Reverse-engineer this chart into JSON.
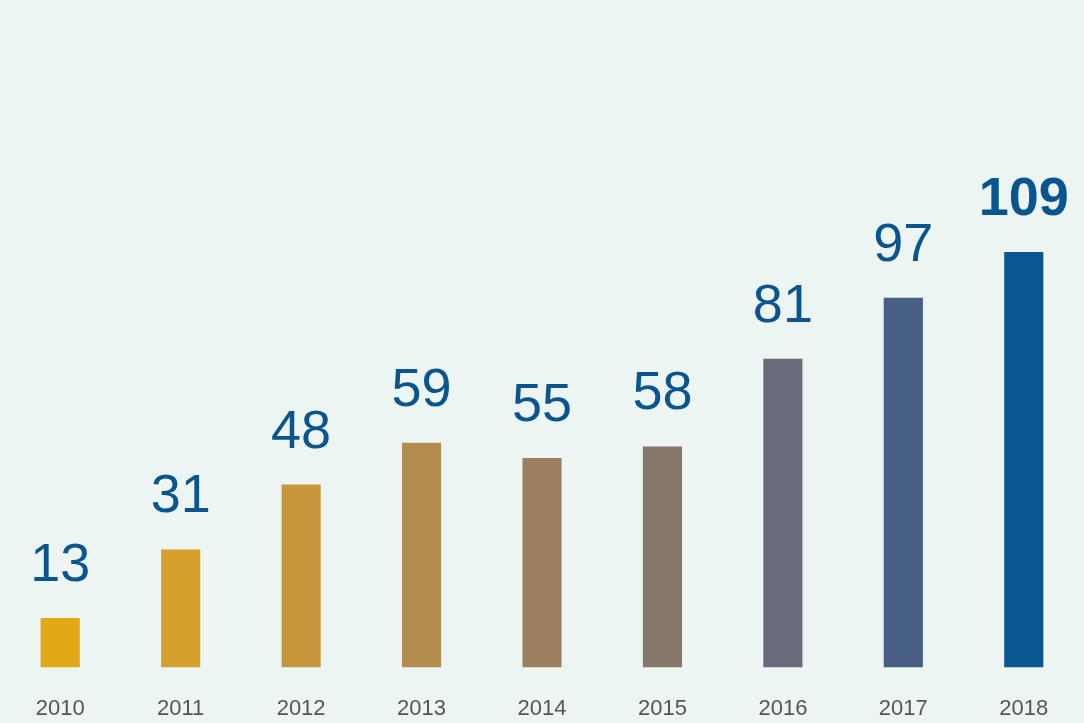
{
  "chart_data": {
    "type": "bar",
    "categories": [
      "2010",
      "2011",
      "2012",
      "2013",
      "2014",
      "2015",
      "2016",
      "2017",
      "2018"
    ],
    "values": [
      13,
      31,
      48,
      59,
      55,
      58,
      81,
      97,
      109
    ],
    "colors": [
      "#e2a818",
      "#d6a02a",
      "#c7963c",
      "#b38c50",
      "#9d8060",
      "#87776b",
      "#696b7a",
      "#485f85",
      "#0b5591"
    ],
    "data_labels": true
  }
}
